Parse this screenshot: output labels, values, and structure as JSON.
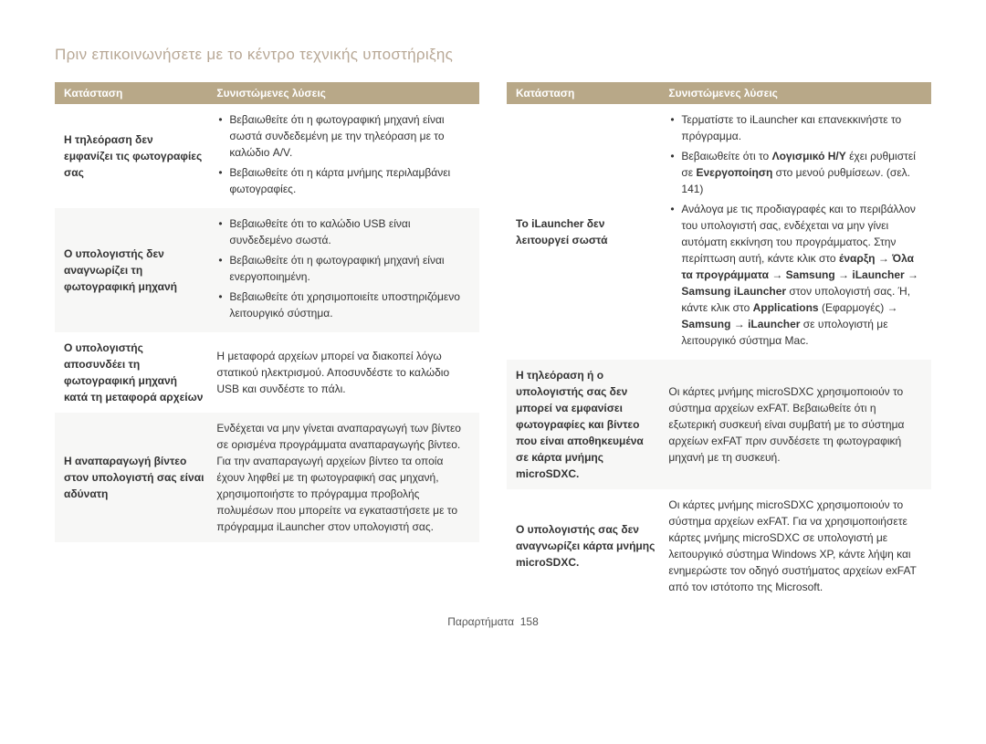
{
  "pageTitle": "Πριν επικοινωνήσετε με το κέντρο τεχνικής υποστήριξης",
  "headers": {
    "status": "Κατάσταση",
    "solutions": "Συνιστώμενες λύσεις"
  },
  "leftTable": {
    "rows": [
      {
        "status": "Η τηλεόραση δεν εμφανίζει τις φωτογραφίες σας",
        "bullets": [
          "Βεβαιωθείτε ότι η φωτογραφική μηχανή είναι σωστά συνδεδεμένη με την τηλεόραση με το καλώδιο A/V.",
          "Βεβαιωθείτε ότι η κάρτα μνήμης περιλαμβάνει φωτογραφίες."
        ]
      },
      {
        "status": "Ο υπολογιστής δεν αναγνωρίζει τη φωτογραφική μηχανή",
        "bullets": [
          "Βεβαιωθείτε ότι το καλώδιο USB είναι συνδεδεμένο σωστά.",
          "Βεβαιωθείτε ότι η φωτογραφική μηχανή είναι ενεργοποιημένη.",
          "Βεβαιωθείτε ότι χρησιμοποιείτε υποστηριζόμενο λειτουργικό σύστημα."
        ]
      },
      {
        "status": "Ο υπολογιστής αποσυνδέει τη φωτογραφική μηχανή κατά τη μεταφορά αρχείων",
        "text": "Η μεταφορά αρχείων μπορεί να διακοπεί λόγω στατικού ηλεκτρισμού. Αποσυνδέστε το καλώδιο USB και συνδέστε το πάλι."
      },
      {
        "status": "Η αναπαραγωγή βίντεο στον υπολογιστή σας είναι αδύνατη",
        "text": "Ενδέχεται να μην γίνεται αναπαραγωγή των βίντεο σε ορισμένα προγράμματα αναπαραγωγής βίντεο. Για την αναπαραγωγή αρχείων βίντεο τα οποία έχουν ληφθεί με τη φωτογραφική σας μηχανή, χρησιμοποιήστε το πρόγραμμα προβολής πολυμέσων που μπορείτε να εγκαταστήσετε με το πρόγραμμα iLauncher στον υπολογιστή σας."
      }
    ]
  },
  "rightTable": {
    "rows": [
      {
        "status": "Το iLauncher δεν λειτουργεί σωστά",
        "htmlList": true
      },
      {
        "status": "Η τηλεόραση ή ο υπολογιστής σας δεν μπορεί να εμφανίσει φωτογραφίες και βίντεο που είναι αποθηκευμένα σε κάρτα μνήμης microSDXC.",
        "text": "Οι κάρτες μνήμης microSDXC χρησιμοποιούν το σύστημα αρχείων exFAT. Βεβαιωθείτε ότι η εξωτερική συσκευή είναι συμβατή με το σύστημα αρχείων exFAT πριν συνδέσετε τη φωτογραφική μηχανή με τη συσκευή."
      },
      {
        "status": "Ο υπολογιστής σας δεν αναγνωρίζει κάρτα μνήμης microSDXC.",
        "text": "Οι κάρτες μνήμης microSDXC χρησιμοποιούν το σύστημα αρχείων exFAT. Για να χρησιμοποιήσετε κάρτες μνήμης microSDXC σε υπολογιστή με λειτουργικό σύστημα Windows XP, κάντε λήψη και ενημερώστε τον οδηγό συστήματος αρχείων exFAT από τον ιστότοπο της Microsoft."
      }
    ]
  },
  "rightRow0": {
    "b1": "Τερματίστε το iLauncher και επανεκκινήστε το πρόγραμμα.",
    "b2_pre": "Βεβαιωθείτε ότι το ",
    "b2_bold1": "Λογισμικό Η/Υ",
    "b2_mid": " έχει ρυθμιστεί σε ",
    "b2_bold2": "Ενεργοποίηση",
    "b2_post": " στο μενού ρυθμίσεων. (σελ. 141)",
    "b3_pre": "Ανάλογα με τις προδιαγραφές και το περιβάλλον του υπολογιστή σας, ενδέχεται να μην γίνει αυτόματη εκκίνηση του προγράμματος. Στην περίπτωση αυτή, κάντε κλικ στο ",
    "b3_bold1": "έναρξη",
    "b3_arrow1": " → ",
    "b3_bold2": "Όλα τα προγράμματα",
    "b3_arrow2": " → ",
    "b3_bold3": "Samsung",
    "b3_arrow3": " → ",
    "b3_bold4": "iLauncher",
    "b3_arrow4": " → ",
    "b3_bold5": "Samsung iLauncher",
    "b3_mid": " στον υπολογιστή σας. Ή, κάντε κλικ στο ",
    "b3_bold6": "Applications",
    "b3_mid2": " (Εφαρμογές) → ",
    "b3_bold7": "Samsung",
    "b3_arrow5": " → ",
    "b3_bold8": "iLauncher",
    "b3_post": " σε υπολογιστή με λειτουργικό σύστημα Mac."
  },
  "footer": {
    "label": "Παραρτήματα",
    "page": "158"
  },
  "colors": {
    "headerBg": "#b8a888",
    "headerText": "#ffffff",
    "titleColor": "#b8a896",
    "rowAlt": "#f7f7f6"
  },
  "typography": {
    "title_fontsize": 17,
    "body_fontsize": 12,
    "line_height": 1.5
  }
}
